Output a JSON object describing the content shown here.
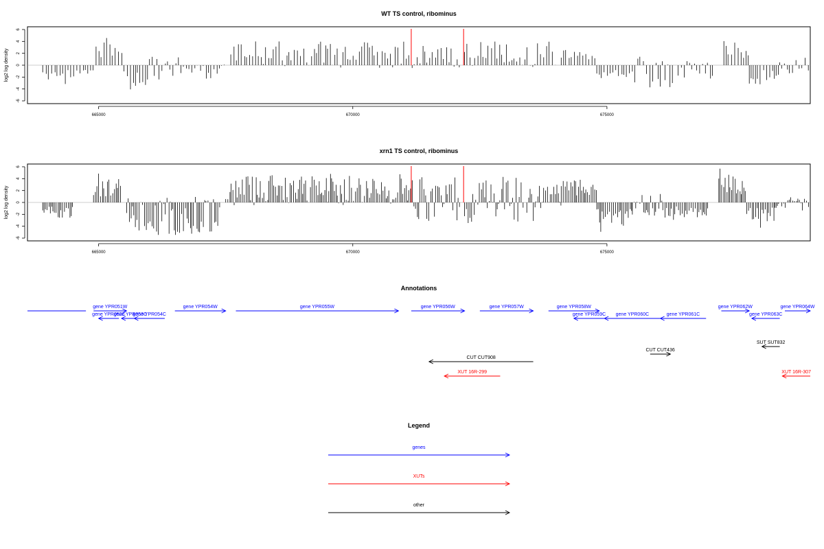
{
  "panels": [
    {
      "title": "WT TS control, ribominus",
      "ylabel": "log2 log density",
      "yticks": [
        "6",
        "4",
        "2",
        "0",
        "-2",
        "-4",
        "-6"
      ],
      "xticks": [
        "665000",
        "670000",
        "675000"
      ]
    },
    {
      "title": "xrn1 TS control, ribominus",
      "ylabel": "log2 log density",
      "yticks": [
        "6",
        "4",
        "2",
        "0",
        "-2",
        "-4",
        "-6"
      ],
      "xticks": [
        "665000",
        "670000",
        "675000"
      ]
    }
  ],
  "annotations_title": "Annotations",
  "legend": {
    "title": "Legend",
    "items": [
      {
        "label": "genes",
        "color": "#0000ff"
      },
      {
        "label": "XUTs",
        "color": "#ff0000"
      },
      {
        "label": "other",
        "color": "#000000"
      }
    ]
  },
  "colors": {
    "gene": "#0000ff",
    "xut": "#ff0000",
    "other": "#000000",
    "marker": "#ff0000"
  },
  "chart_data": [
    {
      "type": "bar",
      "title": "WT TS control, ribominus",
      "ylabel": "log2 log density",
      "xlim": [
        663600,
        679000
      ],
      "ylim": [
        -6,
        6
      ],
      "x_ticks": [
        665000,
        670000,
        675000
      ],
      "markers_x": [
        671150,
        672180
      ],
      "regions": [
        {
          "start": 663900,
          "end": 664900,
          "min": -3.5,
          "max": 0
        },
        {
          "start": 664950,
          "end": 665500,
          "min": 0,
          "max": 5
        },
        {
          "start": 665500,
          "end": 666000,
          "min": -5.5,
          "max": 0
        },
        {
          "start": 666000,
          "end": 667500,
          "min": -2.5,
          "max": 1.5
        },
        {
          "start": 667600,
          "end": 671100,
          "min": -0.5,
          "max": 4
        },
        {
          "start": 671100,
          "end": 672100,
          "min": -0.5,
          "max": 3.5
        },
        {
          "start": 672200,
          "end": 674000,
          "min": -0.5,
          "max": 4
        },
        {
          "start": 674100,
          "end": 674800,
          "min": 0,
          "max": 3
        },
        {
          "start": 674800,
          "end": 675500,
          "min": -3.5,
          "max": 0
        },
        {
          "start": 675500,
          "end": 676300,
          "min": -4,
          "max": 1.5
        },
        {
          "start": 676400,
          "end": 677100,
          "min": -2.5,
          "max": 1
        },
        {
          "start": 677300,
          "end": 677800,
          "min": 0,
          "max": 6
        },
        {
          "start": 677800,
          "end": 678400,
          "min": -4.5,
          "max": 0
        },
        {
          "start": 678400,
          "end": 679000,
          "min": -1.5,
          "max": 1.5
        }
      ]
    },
    {
      "type": "bar",
      "title": "xrn1 TS control, ribominus",
      "ylabel": "log2 log density",
      "xlim": [
        663600,
        679000
      ],
      "ylim": [
        -6,
        6
      ],
      "x_ticks": [
        665000,
        670000,
        675000
      ],
      "markers_x": [
        671150,
        672180
      ],
      "regions": [
        {
          "start": 663900,
          "end": 664500,
          "min": -3.5,
          "max": 0
        },
        {
          "start": 664900,
          "end": 665450,
          "min": 0,
          "max": 5
        },
        {
          "start": 665550,
          "end": 667400,
          "min": -5.5,
          "max": 1
        },
        {
          "start": 667500,
          "end": 671100,
          "min": -0.5,
          "max": 5
        },
        {
          "start": 671100,
          "end": 672100,
          "min": -3.5,
          "max": 4.5
        },
        {
          "start": 672200,
          "end": 673600,
          "min": -3.5,
          "max": 4.5
        },
        {
          "start": 673600,
          "end": 674100,
          "min": -1,
          "max": 4
        },
        {
          "start": 674100,
          "end": 674800,
          "min": 0,
          "max": 5
        },
        {
          "start": 674800,
          "end": 675500,
          "min": -5.5,
          "max": 0
        },
        {
          "start": 675500,
          "end": 676100,
          "min": -2.5,
          "max": 1.5
        },
        {
          "start": 676100,
          "end": 677000,
          "min": -3.5,
          "max": 0
        },
        {
          "start": 677200,
          "end": 677750,
          "min": 0,
          "max": 6.5
        },
        {
          "start": 677750,
          "end": 678300,
          "min": -4.5,
          "max": 0
        },
        {
          "start": 678300,
          "end": 679000,
          "min": -1.5,
          "max": 1
        }
      ]
    }
  ],
  "features": [
    {
      "label": "",
      "class": "gene",
      "start": 663600,
      "end": 664750,
      "row": 0,
      "dir": "none"
    },
    {
      "label": "gene YPR051W",
      "class": "gene",
      "start": 664900,
      "end": 665550,
      "row": 0,
      "dir": "right"
    },
    {
      "label": "gene YPR052C",
      "class": "gene",
      "start": 665000,
      "end": 665400,
      "row": 1,
      "dir": "left"
    },
    {
      "label": "gene YPR053C",
      "class": "gene",
      "start": 665450,
      "end": 665800,
      "row": 1,
      "dir": "left"
    },
    {
      "label": "gene YPR054C",
      "class": "gene",
      "start": 665700,
      "end": 666300,
      "row": 1,
      "dir": "left"
    },
    {
      "label": "gene YPR054W",
      "class": "gene",
      "start": 666500,
      "end": 667500,
      "row": 0,
      "dir": "right"
    },
    {
      "label": "gene YPR055W",
      "class": "gene",
      "start": 667700,
      "end": 670900,
      "row": 0,
      "dir": "right"
    },
    {
      "label": "gene YPR056W",
      "class": "gene",
      "start": 671150,
      "end": 672200,
      "row": 0,
      "dir": "right"
    },
    {
      "label": "gene YPR057W",
      "class": "gene",
      "start": 672500,
      "end": 673550,
      "row": 0,
      "dir": "right"
    },
    {
      "label": "gene YPR058W",
      "class": "gene",
      "start": 673850,
      "end": 674850,
      "row": 0,
      "dir": "right"
    },
    {
      "label": "gene YPR059C",
      "class": "gene",
      "start": 674350,
      "end": 674950,
      "row": 1,
      "dir": "left"
    },
    {
      "label": "gene YPR060C",
      "class": "gene",
      "start": 674950,
      "end": 676050,
      "row": 1,
      "dir": "left"
    },
    {
      "label": "gene YPR061C",
      "class": "gene",
      "start": 676050,
      "end": 676950,
      "row": 1,
      "dir": "left"
    },
    {
      "label": "gene YPR062W",
      "class": "gene",
      "start": 677250,
      "end": 677800,
      "row": 0,
      "dir": "right"
    },
    {
      "label": "gene YPR063C",
      "class": "gene",
      "start": 677850,
      "end": 678400,
      "row": 1,
      "dir": "left"
    },
    {
      "label": "gene YPR064W",
      "class": "gene",
      "start": 678500,
      "end": 679000,
      "row": 0,
      "dir": "right"
    },
    {
      "label": "SUT SUT832",
      "class": "other",
      "start": 678050,
      "end": 678400,
      "row": 2,
      "dir": "left"
    },
    {
      "label": "CUT CUT436",
      "class": "other",
      "start": 675850,
      "end": 676250,
      "row": 3,
      "dir": "right"
    },
    {
      "label": "CUT CUT908",
      "class": "other",
      "start": 671500,
      "end": 673550,
      "row": 4,
      "dir": "left"
    },
    {
      "label": "XUT 16R-299",
      "class": "xut",
      "start": 671800,
      "end": 672900,
      "row": 5,
      "dir": "left"
    },
    {
      "label": "XUT 16R-307",
      "class": "xut",
      "start": 678450,
      "end": 679000,
      "row": 5,
      "dir": "left"
    }
  ]
}
